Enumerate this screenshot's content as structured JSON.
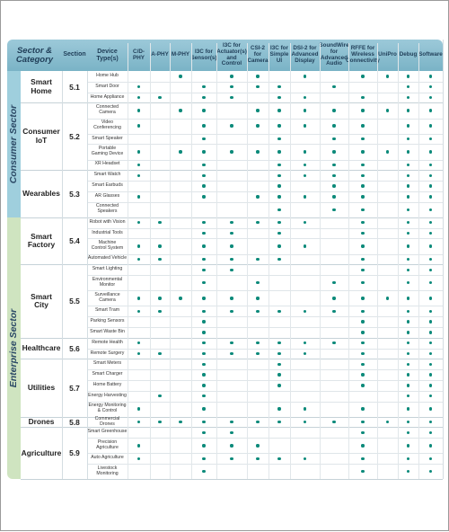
{
  "headers": [
    "Sector &\nCategory",
    "Section",
    "Device\nType(s)",
    "C/D-PHY",
    "A-PHY",
    "M-PHY",
    "I3C for\nSensor(s)",
    "I3C for\nActuator(s)\nand Control",
    "CSI-2 for\nCamera",
    "I3C for\nSimple\nUI",
    "DSI-2 for\nAdvanced\nDisplay",
    "SoundWire\nfor\nAdvanced\nAudio",
    "RFFE for\nWireless\nConnectivity",
    "UniPro",
    "Debug",
    "Software"
  ],
  "sectors": [
    {
      "name": "Consumer Sector",
      "color": "#9fcfdd"
    },
    {
      "name": "Enterprise Sector",
      "color": "#cfe4c0"
    }
  ],
  "groups": [
    {
      "sector": 0,
      "category": "Smart\nHome",
      "section": "5.1",
      "rows": [
        {
          "device": "Home Hub",
          "dots": [
            0,
            0,
            1,
            0,
            1,
            1,
            0,
            1,
            0,
            1,
            1,
            1,
            1
          ]
        },
        {
          "device": "Smart Door",
          "dots": [
            1,
            0,
            0,
            1,
            1,
            1,
            1,
            0,
            1,
            0,
            0,
            1,
            1
          ]
        },
        {
          "device": "Home Appliance",
          "dots": [
            1,
            1,
            0,
            1,
            1,
            0,
            1,
            1,
            0,
            1,
            0,
            1,
            1
          ]
        }
      ]
    },
    {
      "sector": 0,
      "category": "Consumer\nIoT",
      "section": "5.2",
      "rows": [
        {
          "device": "Connected\nCamera",
          "dots": [
            1,
            0,
            1,
            1,
            0,
            1,
            1,
            1,
            1,
            1,
            1,
            1,
            1
          ]
        },
        {
          "device": "Video\nConferencing",
          "dots": [
            1,
            0,
            0,
            1,
            1,
            1,
            1,
            1,
            1,
            1,
            0,
            1,
            1
          ]
        },
        {
          "device": "Smart Speaker",
          "dots": [
            0,
            0,
            0,
            1,
            0,
            0,
            1,
            0,
            1,
            1,
            0,
            1,
            1
          ]
        },
        {
          "device": "Portable\nGaming Device",
          "dots": [
            1,
            0,
            1,
            1,
            1,
            1,
            1,
            1,
            1,
            1,
            1,
            1,
            1
          ]
        },
        {
          "device": "XR Headset",
          "dots": [
            1,
            0,
            0,
            1,
            0,
            0,
            1,
            1,
            1,
            1,
            0,
            1,
            1
          ]
        }
      ]
    },
    {
      "sector": 0,
      "category": "Wearables",
      "section": "5.3",
      "rows": [
        {
          "device": "Smart Watch",
          "dots": [
            1,
            0,
            0,
            1,
            0,
            0,
            1,
            1,
            1,
            1,
            0,
            1,
            1
          ]
        },
        {
          "device": "Smart Earbuds",
          "dots": [
            0,
            0,
            0,
            1,
            0,
            0,
            1,
            0,
            1,
            1,
            0,
            1,
            1
          ]
        },
        {
          "device": "AR Glasses",
          "dots": [
            1,
            0,
            0,
            1,
            0,
            1,
            1,
            1,
            1,
            1,
            0,
            1,
            1
          ]
        },
        {
          "device": "Connected\nSpeakers",
          "dots": [
            0,
            0,
            0,
            0,
            0,
            0,
            1,
            0,
            1,
            1,
            0,
            1,
            1
          ]
        }
      ]
    },
    {
      "sector": 1,
      "category": "Smart\nFactory",
      "section": "5.4",
      "rows": [
        {
          "device": "Robot with Vision",
          "dots": [
            1,
            1,
            0,
            1,
            1,
            1,
            1,
            1,
            0,
            1,
            0,
            1,
            1
          ]
        },
        {
          "device": "Industrial Tools",
          "dots": [
            0,
            0,
            0,
            1,
            1,
            0,
            1,
            0,
            0,
            1,
            0,
            1,
            1
          ]
        },
        {
          "device": "Machine\nControl System",
          "dots": [
            1,
            1,
            0,
            1,
            1,
            0,
            1,
            1,
            0,
            1,
            0,
            1,
            1
          ]
        },
        {
          "device": "Automated Vehicle",
          "dots": [
            1,
            1,
            0,
            1,
            1,
            1,
            1,
            0,
            0,
            1,
            0,
            1,
            1
          ]
        }
      ]
    },
    {
      "sector": 1,
      "category": "Smart\nCity",
      "section": "5.5",
      "rows": [
        {
          "device": "Smart Lighting",
          "dots": [
            0,
            0,
            0,
            1,
            1,
            0,
            0,
            0,
            0,
            1,
            0,
            1,
            1
          ]
        },
        {
          "device": "Environmental\nMonitor",
          "dots": [
            0,
            0,
            0,
            1,
            0,
            1,
            0,
            0,
            1,
            1,
            0,
            1,
            1
          ]
        },
        {
          "device": "Surveillance\nCamera",
          "dots": [
            1,
            1,
            1,
            1,
            1,
            1,
            0,
            0,
            1,
            1,
            1,
            1,
            1
          ]
        },
        {
          "device": "Smart Tram",
          "dots": [
            1,
            1,
            0,
            1,
            1,
            1,
            1,
            1,
            1,
            1,
            0,
            1,
            1
          ]
        },
        {
          "device": "Parking Sensors",
          "dots": [
            0,
            0,
            0,
            1,
            0,
            0,
            0,
            0,
            0,
            1,
            0,
            1,
            1
          ]
        },
        {
          "device": "Smart Waste Bin",
          "dots": [
            0,
            0,
            0,
            1,
            0,
            0,
            0,
            0,
            0,
            1,
            0,
            1,
            1
          ]
        }
      ]
    },
    {
      "sector": 1,
      "category": "Healthcare",
      "section": "5.6",
      "rows": [
        {
          "device": "Remote Health",
          "dots": [
            1,
            0,
            0,
            1,
            1,
            1,
            1,
            1,
            1,
            1,
            0,
            1,
            1
          ]
        },
        {
          "device": "Remote Surgery",
          "dots": [
            1,
            1,
            0,
            1,
            1,
            1,
            1,
            1,
            0,
            1,
            0,
            1,
            1
          ]
        }
      ]
    },
    {
      "sector": 1,
      "category": "Utilities",
      "section": "5.7",
      "rows": [
        {
          "device": "Smart Meters",
          "dots": [
            0,
            0,
            0,
            1,
            0,
            0,
            1,
            0,
            0,
            1,
            0,
            1,
            1
          ]
        },
        {
          "device": "Smart Charger",
          "dots": [
            0,
            0,
            0,
            1,
            0,
            0,
            1,
            0,
            0,
            1,
            0,
            1,
            1
          ]
        },
        {
          "device": "Home Battery",
          "dots": [
            0,
            0,
            0,
            1,
            0,
            0,
            1,
            0,
            0,
            1,
            0,
            1,
            1
          ]
        },
        {
          "device": "Energy Harvesting",
          "dots": [
            0,
            1,
            0,
            1,
            0,
            0,
            0,
            0,
            0,
            0,
            0,
            1,
            1
          ]
        },
        {
          "device": "Energy Monitoring\n& Control",
          "dots": [
            1,
            0,
            0,
            1,
            0,
            0,
            1,
            1,
            0,
            1,
            0,
            1,
            1
          ]
        }
      ]
    },
    {
      "sector": 1,
      "category": "Drones",
      "section": "5.8",
      "rows": [
        {
          "device": "Commercial Drones",
          "dots": [
            1,
            1,
            1,
            1,
            1,
            1,
            1,
            1,
            1,
            1,
            1,
            1,
            1
          ]
        }
      ]
    },
    {
      "sector": 1,
      "category": "Agriculture",
      "section": "5.9",
      "rows": [
        {
          "device": "Smart Greenhouse",
          "dots": [
            0,
            0,
            0,
            1,
            1,
            0,
            0,
            0,
            0,
            1,
            0,
            1,
            1
          ]
        },
        {
          "device": "Precision\nAgriculture",
          "dots": [
            1,
            0,
            0,
            1,
            1,
            1,
            0,
            0,
            0,
            1,
            0,
            1,
            1
          ]
        },
        {
          "device": "Auto Agriculture",
          "dots": [
            1,
            0,
            0,
            1,
            1,
            1,
            1,
            1,
            0,
            1,
            0,
            1,
            1
          ]
        },
        {
          "device": "Livestock\nMonitoring",
          "dots": [
            0,
            0,
            0,
            1,
            0,
            0,
            0,
            0,
            0,
            1,
            0,
            1,
            1
          ]
        }
      ]
    }
  ],
  "colors": {
    "dot": "#0c8a7a",
    "header": "#86bccd",
    "consumer": "#9fcfdd",
    "enterprise": "#cfe4c0"
  }
}
